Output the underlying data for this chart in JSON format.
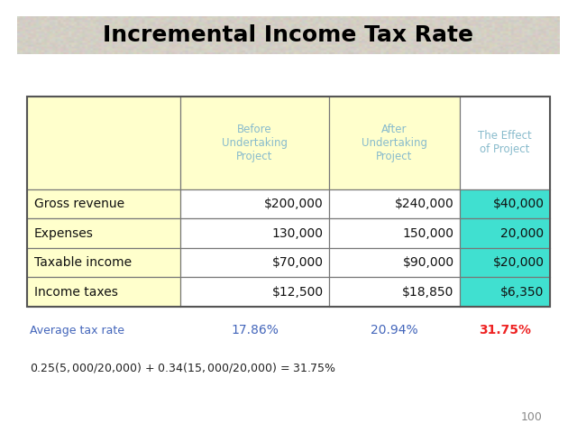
{
  "title": "Incremental Income Tax Rate",
  "title_bg_color": "#d4c9b0",
  "title_text_color": "#000000",
  "col_headers": [
    "",
    "Before\nUndertaking\nProject",
    "After\nUndertaking\nProject",
    "The Effect\nof Project"
  ],
  "col_header_text_color": "#88bbcc",
  "col_header_bg_color": "#ffffcc",
  "last_col_header_bg_color": "#ffffff",
  "rows": [
    [
      "Gross revenue",
      "$200,000",
      "$240,000",
      "$40,000"
    ],
    [
      "Expenses",
      "130,000",
      "150,000",
      "20,000"
    ],
    [
      "Taxable income",
      "$70,000",
      "$90,000",
      "$20,000"
    ],
    [
      "Income taxes",
      "$12,500",
      "$18,850",
      "$6,350"
    ]
  ],
  "highlight_col_color": "#40e0d0",
  "first_col_bg_color": "#ffffcc",
  "white_col_bg": "#ffffff",
  "avg_label": "Average tax rate",
  "avg_label_color": "#4466bb",
  "avg_values": [
    "17.86%",
    "20.94%",
    "31.75%"
  ],
  "avg_val_colors": [
    "#4466bb",
    "#4466bb",
    "#ee2222"
  ],
  "formula_text": "0.25($5,000/$20,000) + 0.34($15,000/$20,000) = 31.75%",
  "formula_color": "#222222",
  "page_number": "100",
  "bg_color": "#ffffff",
  "table_edge_color": "#666666",
  "table_inner_color": "#999999"
}
